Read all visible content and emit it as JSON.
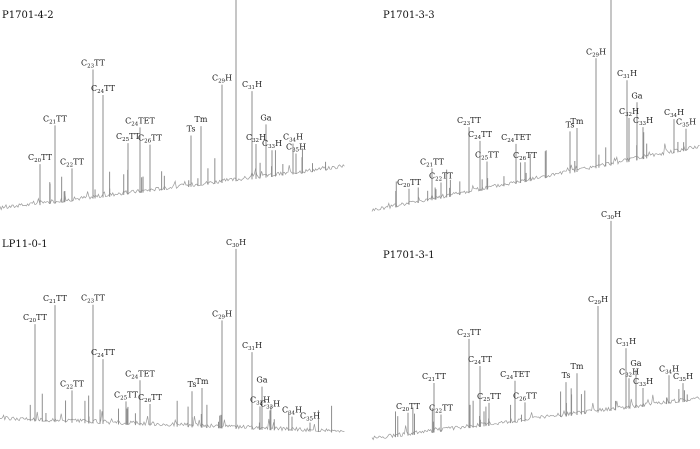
{
  "chart_data": [
    {
      "type": "line",
      "panel": "top-left",
      "sample": "P1701-4-2",
      "peaks": [
        {
          "label": "C20TT",
          "base": "C",
          "sub": "20",
          "suffix": "TT",
          "height": 0.2
        },
        {
          "label": "C21TT",
          "base": "C",
          "sub": "21",
          "suffix": "TT",
          "height": 0.38
        },
        {
          "label": "C22TT",
          "base": "C",
          "sub": "22",
          "suffix": "TT",
          "height": 0.16
        },
        {
          "label": "C23TT",
          "base": "C",
          "sub": "23",
          "suffix": "TT",
          "height": 0.63
        },
        {
          "label": "C24TT",
          "base": "C",
          "sub": "24",
          "suffix": "TT",
          "height": 0.5
        },
        {
          "label": "C25TT",
          "base": "C",
          "sub": "25",
          "suffix": "TT",
          "height": 0.25
        },
        {
          "label": "C24TET",
          "base": "C",
          "sub": "24",
          "suffix": "TET",
          "height": 0.32
        },
        {
          "label": "C26TT",
          "base": "C",
          "sub": "26",
          "suffix": "TT",
          "height": 0.23
        },
        {
          "label": "Ts",
          "base": "Ts",
          "sub": "",
          "suffix": "",
          "height": 0.25
        },
        {
          "label": "Tm",
          "base": "Tm",
          "sub": "",
          "suffix": "",
          "height": 0.29
        },
        {
          "label": "C29H",
          "base": "C",
          "sub": "29",
          "suffix": "H",
          "height": 0.48
        },
        {
          "label": "C30H",
          "base": "C",
          "sub": "30",
          "suffix": "H",
          "height": 1.0
        },
        {
          "label": "C31H",
          "base": "C",
          "sub": "31",
          "suffix": "H",
          "height": 0.43
        },
        {
          "label": "Ga",
          "base": "Ga",
          "sub": "",
          "suffix": "",
          "height": 0.26
        },
        {
          "label": "C32H",
          "base": "C",
          "sub": "32",
          "suffix": "H",
          "height": 0.17
        },
        {
          "label": "C33H",
          "base": "C",
          "sub": "33",
          "suffix": "H",
          "height": 0.13
        },
        {
          "label": "C34H",
          "base": "C",
          "sub": "34",
          "suffix": "H",
          "height": 0.15
        },
        {
          "label": "C35H",
          "base": "C",
          "sub": "35",
          "suffix": "H",
          "height": 0.1
        }
      ]
    },
    {
      "type": "line",
      "panel": "top-right",
      "sample": "P1701-3-3",
      "peaks": [
        {
          "label": "C20TT",
          "base": "C",
          "sub": "20",
          "suffix": "TT",
          "height": 0.08
        },
        {
          "label": "C21TT",
          "base": "C",
          "sub": "21",
          "suffix": "TT",
          "height": 0.16
        },
        {
          "label": "C22TT",
          "base": "C",
          "sub": "22",
          "suffix": "TT",
          "height": 0.08
        },
        {
          "label": "C23TT",
          "base": "C",
          "sub": "23",
          "suffix": "TT",
          "height": 0.33
        },
        {
          "label": "C24TT",
          "base": "C",
          "sub": "24",
          "suffix": "TT",
          "height": 0.25
        },
        {
          "label": "C25TT",
          "base": "C",
          "sub": "25",
          "suffix": "TT",
          "height": 0.14
        },
        {
          "label": "C24TET",
          "base": "C",
          "sub": "24",
          "suffix": "TET",
          "height": 0.2
        },
        {
          "label": "C26TT",
          "base": "C",
          "sub": "26",
          "suffix": "TT",
          "height": 0.1
        },
        {
          "label": "Ts",
          "base": "Ts",
          "sub": "",
          "suffix": "",
          "height": 0.21
        },
        {
          "label": "Tm",
          "base": "Tm",
          "sub": "",
          "suffix": "",
          "height": 0.22
        },
        {
          "label": "C29H",
          "base": "C",
          "sub": "29",
          "suffix": "H",
          "height": 0.55
        },
        {
          "label": "C30H",
          "base": "C",
          "sub": "30",
          "suffix": "H",
          "height": 1.0
        },
        {
          "label": "C31H",
          "base": "C",
          "sub": "31",
          "suffix": "H",
          "height": 0.41
        },
        {
          "label": "Ga",
          "base": "Ga",
          "sub": "",
          "suffix": "",
          "height": 0.29
        },
        {
          "label": "C32H",
          "base": "C",
          "sub": "32",
          "suffix": "H",
          "height": 0.22
        },
        {
          "label": "C33H",
          "base": "C",
          "sub": "33",
          "suffix": "H",
          "height": 0.16
        },
        {
          "label": "C34H",
          "base": "C",
          "sub": "34",
          "suffix": "H",
          "height": 0.17
        },
        {
          "label": "C35H",
          "base": "C",
          "sub": "35",
          "suffix": "H",
          "height": 0.11
        }
      ]
    },
    {
      "type": "line",
      "panel": "bottom-left",
      "sample": "LP11-0-1",
      "peaks": [
        {
          "label": "C20TT",
          "base": "C",
          "sub": "20",
          "suffix": "TT",
          "height": 0.54
        },
        {
          "label": "C21TT",
          "base": "C",
          "sub": "21",
          "suffix": "TT",
          "height": 0.65
        },
        {
          "label": "C22TT",
          "base": "C",
          "sub": "22",
          "suffix": "TT",
          "height": 0.18
        },
        {
          "label": "C23TT",
          "base": "C",
          "sub": "23",
          "suffix": "TT",
          "height": 0.66
        },
        {
          "label": "C24TT",
          "base": "C",
          "sub": "24",
          "suffix": "TT",
          "height": 0.36
        },
        {
          "label": "C25TT",
          "base": "C",
          "sub": "25",
          "suffix": "TT",
          "height": 0.13
        },
        {
          "label": "C24TET",
          "base": "C",
          "sub": "24",
          "suffix": "TET",
          "height": 0.25
        },
        {
          "label": "C26TT",
          "base": "C",
          "sub": "26",
          "suffix": "TT",
          "height": 0.12
        },
        {
          "label": "Ts",
          "base": "Ts",
          "sub": "",
          "suffix": "",
          "height": 0.2
        },
        {
          "label": "Tm",
          "base": "Tm",
          "sub": "",
          "suffix": "",
          "height": 0.22
        },
        {
          "label": "C29H",
          "base": "C",
          "sub": "29",
          "suffix": "H",
          "height": 0.6
        },
        {
          "label": "C30H",
          "base": "C",
          "sub": "30",
          "suffix": "H",
          "height": 1.0
        },
        {
          "label": "C31H",
          "base": "C",
          "sub": "31",
          "suffix": "H",
          "height": 0.43
        },
        {
          "label": "Ga",
          "base": "Ga",
          "sub": "",
          "suffix": "",
          "height": 0.24
        },
        {
          "label": "C32H",
          "base": "C",
          "sub": "32",
          "suffix": "H",
          "height": 0.13
        },
        {
          "label": "C33H",
          "base": "C",
          "sub": "33",
          "suffix": "H",
          "height": 0.11
        },
        {
          "label": "C34H",
          "base": "C",
          "sub": "34",
          "suffix": "H",
          "height": 0.08
        },
        {
          "label": "C35H",
          "base": "C",
          "sub": "35",
          "suffix": "H",
          "height": 0.05
        }
      ]
    },
    {
      "type": "line",
      "panel": "bottom-right",
      "sample": "P1701-3-1",
      "peaks": [
        {
          "label": "C20TT",
          "base": "C",
          "sub": "20",
          "suffix": "TT",
          "height": 0.12
        },
        {
          "label": "C21TT",
          "base": "C",
          "sub": "21",
          "suffix": "TT",
          "height": 0.26
        },
        {
          "label": "C22TT",
          "base": "C",
          "sub": "22",
          "suffix": "TT",
          "height": 0.09
        },
        {
          "label": "C23TT",
          "base": "C",
          "sub": "23",
          "suffix": "TT",
          "height": 0.47
        },
        {
          "label": "C24TT",
          "base": "C",
          "sub": "24",
          "suffix": "TT",
          "height": 0.32
        },
        {
          "label": "C25TT",
          "base": "C",
          "sub": "25",
          "suffix": "TT",
          "height": 0.12
        },
        {
          "label": "C24TET",
          "base": "C",
          "sub": "24",
          "suffix": "TET",
          "height": 0.22
        },
        {
          "label": "C26TT",
          "base": "C",
          "sub": "26",
          "suffix": "TT",
          "height": 0.1
        },
        {
          "label": "Ts",
          "base": "Ts",
          "sub": "",
          "suffix": "",
          "height": 0.18
        },
        {
          "label": "Tm",
          "base": "Tm",
          "sub": "",
          "suffix": "",
          "height": 0.22
        },
        {
          "label": "C29H",
          "base": "C",
          "sub": "29",
          "suffix": "H",
          "height": 0.56
        },
        {
          "label": "C30H",
          "base": "C",
          "sub": "30",
          "suffix": "H",
          "height": 1.0
        },
        {
          "label": "C31H",
          "base": "C",
          "sub": "31",
          "suffix": "H",
          "height": 0.32
        },
        {
          "label": "Ga",
          "base": "Ga",
          "sub": "",
          "suffix": "",
          "height": 0.2
        },
        {
          "label": "C32H",
          "base": "C",
          "sub": "32",
          "suffix": "H",
          "height": 0.16
        },
        {
          "label": "C33H",
          "base": "C",
          "sub": "33",
          "suffix": "H",
          "height": 0.1
        },
        {
          "label": "C34H",
          "base": "C",
          "sub": "34",
          "suffix": "H",
          "height": 0.15
        },
        {
          "label": "C35H",
          "base": "C",
          "sub": "35",
          "suffix": "H",
          "height": 0.1
        }
      ]
    }
  ]
}
